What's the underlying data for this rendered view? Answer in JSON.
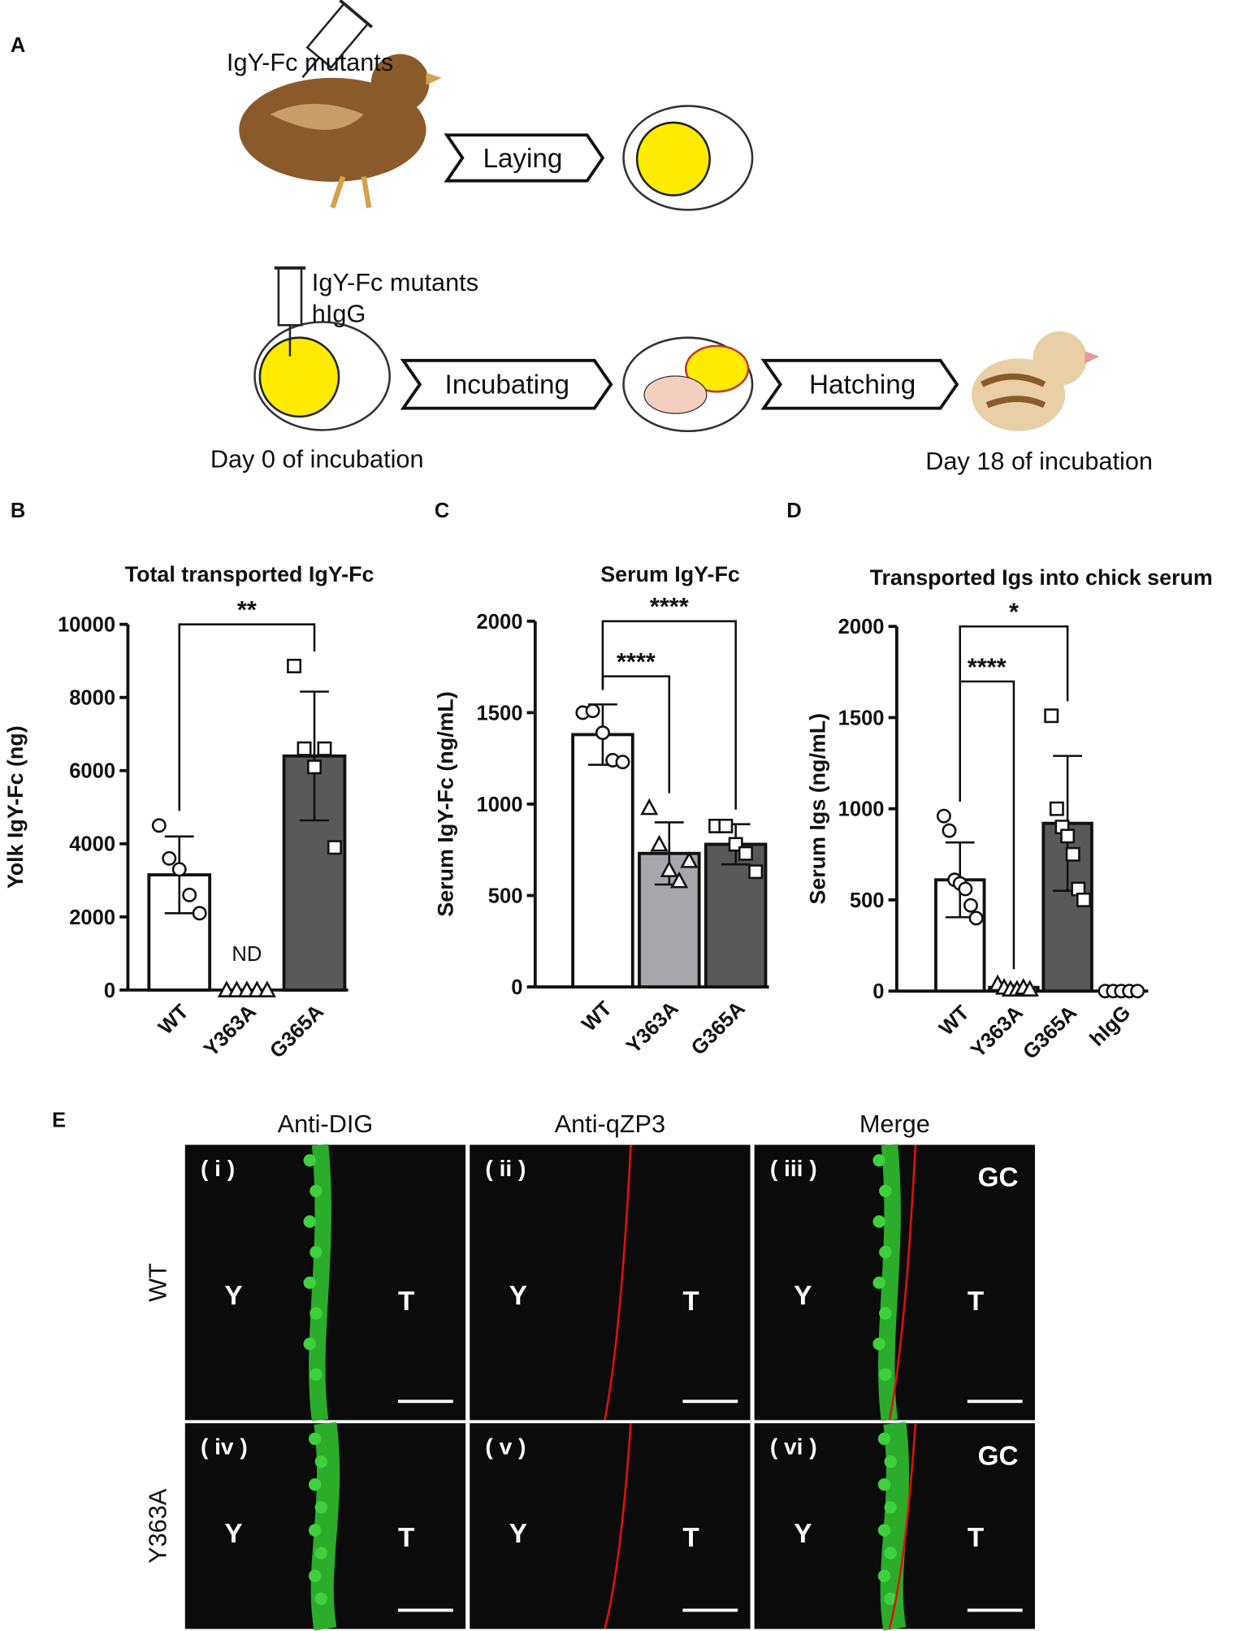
{
  "panel_labels": [
    "A",
    "B",
    "C",
    "D",
    "E"
  ],
  "schematic": {
    "hen_injection": "IgY-Fc mutants",
    "laying": "Laying",
    "egg_injection": [
      "IgY-Fc mutants",
      "hIgG"
    ],
    "incubating": "Incubating",
    "hatching": "Hatching",
    "start_day": "Day 0 of incubation",
    "end_day": "Day 18 of incubation"
  },
  "chart_data": [
    {
      "type": "bar",
      "title": "Total transported IgY-Fc",
      "y_label": "Yolk IgY-Fc (ng)",
      "categories": [
        "WT",
        "Y363A",
        "G365A"
      ],
      "values": [
        3150,
        0,
        6400
      ],
      "errors": [
        1050,
        0,
        1760
      ],
      "points": [
        [
          4500,
          3600,
          3300,
          2600,
          2100
        ],
        [
          0,
          0,
          0,
          0,
          0
        ],
        [
          8860,
          6600,
          6100,
          6600,
          3900
        ]
      ],
      "markers": [
        "circle",
        "triangle",
        "square"
      ],
      "colors": [
        "#ffffff",
        "#a6a6ab",
        "#595959"
      ],
      "ylim": [
        0,
        10000
      ],
      "yticks": [
        0,
        2000,
        4000,
        6000,
        8000,
        10000
      ],
      "brackets": [
        {
          "between": [
            "WT",
            "G365A"
          ],
          "label": "**"
        }
      ],
      "annotations": [
        {
          "category": "Y363A",
          "text": "ND"
        }
      ]
    },
    {
      "type": "bar",
      "title": "Serum IgY-Fc",
      "y_label": "Serum IgY-Fc (ng/mL)",
      "categories": [
        "WT",
        "Y363A",
        "G365A"
      ],
      "values": [
        1380,
        730,
        780
      ],
      "errors": [
        165,
        170,
        110
      ],
      "points": [
        [
          1500,
          1510,
          1390,
          1240,
          1230
        ],
        [
          980,
          780,
          640,
          580,
          690
        ],
        [
          880,
          880,
          780,
          730,
          630
        ]
      ],
      "markers": [
        "circle",
        "triangle",
        "square"
      ],
      "colors": [
        "#ffffff",
        "#a6a6ab",
        "#595959"
      ],
      "ylim": [
        0,
        2000
      ],
      "yticks": [
        0,
        500,
        1000,
        1500,
        2000
      ],
      "brackets": [
        {
          "between": [
            "WT",
            "Y363A"
          ],
          "label": "****"
        },
        {
          "between": [
            "WT",
            "G365A"
          ],
          "label": "****"
        }
      ],
      "annotations": []
    },
    {
      "type": "bar",
      "title": "Transported Igs into chick serum",
      "y_label": "Serum Igs (ng/mL)",
      "categories": [
        "WT",
        "Y363A",
        "G365A",
        "hIgG"
      ],
      "values": [
        610,
        20,
        920,
        0
      ],
      "errors": [
        205,
        10,
        370,
        0
      ],
      "points": [
        [
          960,
          880,
          610,
          590,
          560,
          470,
          400
        ],
        [
          40,
          20,
          10,
          10,
          20,
          10
        ],
        [
          1510,
          1000,
          900,
          850,
          750,
          560,
          500
        ],
        [
          0,
          0,
          0,
          0,
          0
        ]
      ],
      "markers": [
        "circle",
        "triangle",
        "square",
        "circle"
      ],
      "colors": [
        "#ffffff",
        "#a6a6ab",
        "#595959",
        "#ffffff"
      ],
      "ylim": [
        0,
        2000
      ],
      "yticks": [
        0,
        500,
        1000,
        1500,
        2000
      ],
      "brackets": [
        {
          "between": [
            "WT",
            "Y363A"
          ],
          "label": "****"
        },
        {
          "between": [
            "WT",
            "G365A"
          ],
          "label": "*"
        }
      ],
      "annotations": []
    }
  ],
  "micrographs": {
    "columns": [
      "Anti-DIG",
      "Anti-qZP3",
      "Merge"
    ],
    "rows": [
      "WT",
      "Y363A"
    ],
    "panels": [
      {
        "id": "( i )",
        "labels": [
          "Y",
          "T"
        ]
      },
      {
        "id": "( ii )",
        "labels": [
          "Y",
          "T"
        ]
      },
      {
        "id": "( iii )",
        "labels": [
          "Y",
          "T",
          "GC"
        ]
      },
      {
        "id": "( iv )",
        "labels": [
          "Y",
          "T"
        ]
      },
      {
        "id": "( v )",
        "labels": [
          "Y",
          "T"
        ]
      },
      {
        "id": "( vi )",
        "labels": [
          "Y",
          "T",
          "GC"
        ]
      }
    ]
  }
}
